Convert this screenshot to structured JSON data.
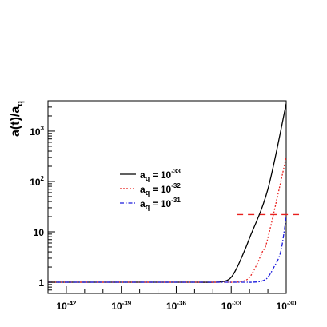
{
  "chart_data": {
    "type": "line",
    "title": "",
    "xlabel": "",
    "ylabel": "a(t)/a_q",
    "ylabel_parts": {
      "base": "a(t)/a",
      "sub": "q"
    },
    "x_scale": "log",
    "y_scale": "log",
    "xlim": [
      1e-43,
      1e-30
    ],
    "ylim": [
      0.6,
      4000
    ],
    "grid": false,
    "legend_position": "center-left",
    "x_ticks": [
      {
        "value": 1e-42,
        "base": "10",
        "exp": "-42"
      },
      {
        "value": 1e-39,
        "base": "10",
        "exp": "-39"
      },
      {
        "value": 1e-36,
        "base": "10",
        "exp": "-36"
      },
      {
        "value": 1e-33,
        "base": "10",
        "exp": "-33"
      },
      {
        "value": 1e-30,
        "base": "10",
        "exp": "-30"
      }
    ],
    "y_ticks": [
      {
        "value": 1,
        "base": "1",
        "exp": ""
      },
      {
        "value": 10,
        "base": "10",
        "exp": ""
      },
      {
        "value": 100,
        "base": "10",
        "exp": "2"
      },
      {
        "value": 1000,
        "base": "10",
        "exp": "3"
      }
    ],
    "series": [
      {
        "name": "a_q = 10^-33",
        "legend": {
          "base": "a",
          "sub": "q",
          "eq": " = 10",
          "exp": "-33"
        },
        "color": "#000000",
        "dash": "",
        "x": [
          1e-43,
          1e-35,
          1e-34,
          3e-34,
          6e-34,
          1e-33,
          2e-33,
          5e-33,
          1e-32,
          1e-31,
          1e-30
        ],
        "y": [
          1.0,
          1.0,
          1.0,
          1.02,
          1.09,
          1.25,
          1.9,
          4.0,
          7.5,
          70,
          3500
        ]
      },
      {
        "name": "a_q = 10^-32",
        "legend": {
          "base": "a",
          "sub": "q",
          "eq": " = 10",
          "exp": "-32"
        },
        "color": "#e8201e",
        "dash": "2,2",
        "x": [
          1e-43,
          1e-34,
          1e-33,
          3e-33,
          6e-33,
          1e-32,
          2e-32,
          5e-32,
          1e-31,
          1e-30
        ],
        "y": [
          1.0,
          1.0,
          1.0,
          1.02,
          1.09,
          1.25,
          1.9,
          4.0,
          7.5,
          300
        ]
      },
      {
        "name": "a_q = 10^-31",
        "legend": {
          "base": "a",
          "sub": "q",
          "eq": " = 10",
          "exp": "-31"
        },
        "color": "#1a1adc",
        "dash": "5,2,1.5,2",
        "x": [
          1e-43,
          1e-33,
          1e-32,
          3e-32,
          6e-32,
          1e-31,
          2e-31,
          5e-31,
          1e-30
        ],
        "y": [
          1.0,
          1.0,
          1.0,
          1.02,
          1.09,
          1.25,
          1.9,
          4.0,
          20
        ]
      }
    ],
    "reference_line": {
      "y": 22,
      "x_from": 2e-33,
      "x_to": 5e-30,
      "color": "#e8201e"
    }
  }
}
